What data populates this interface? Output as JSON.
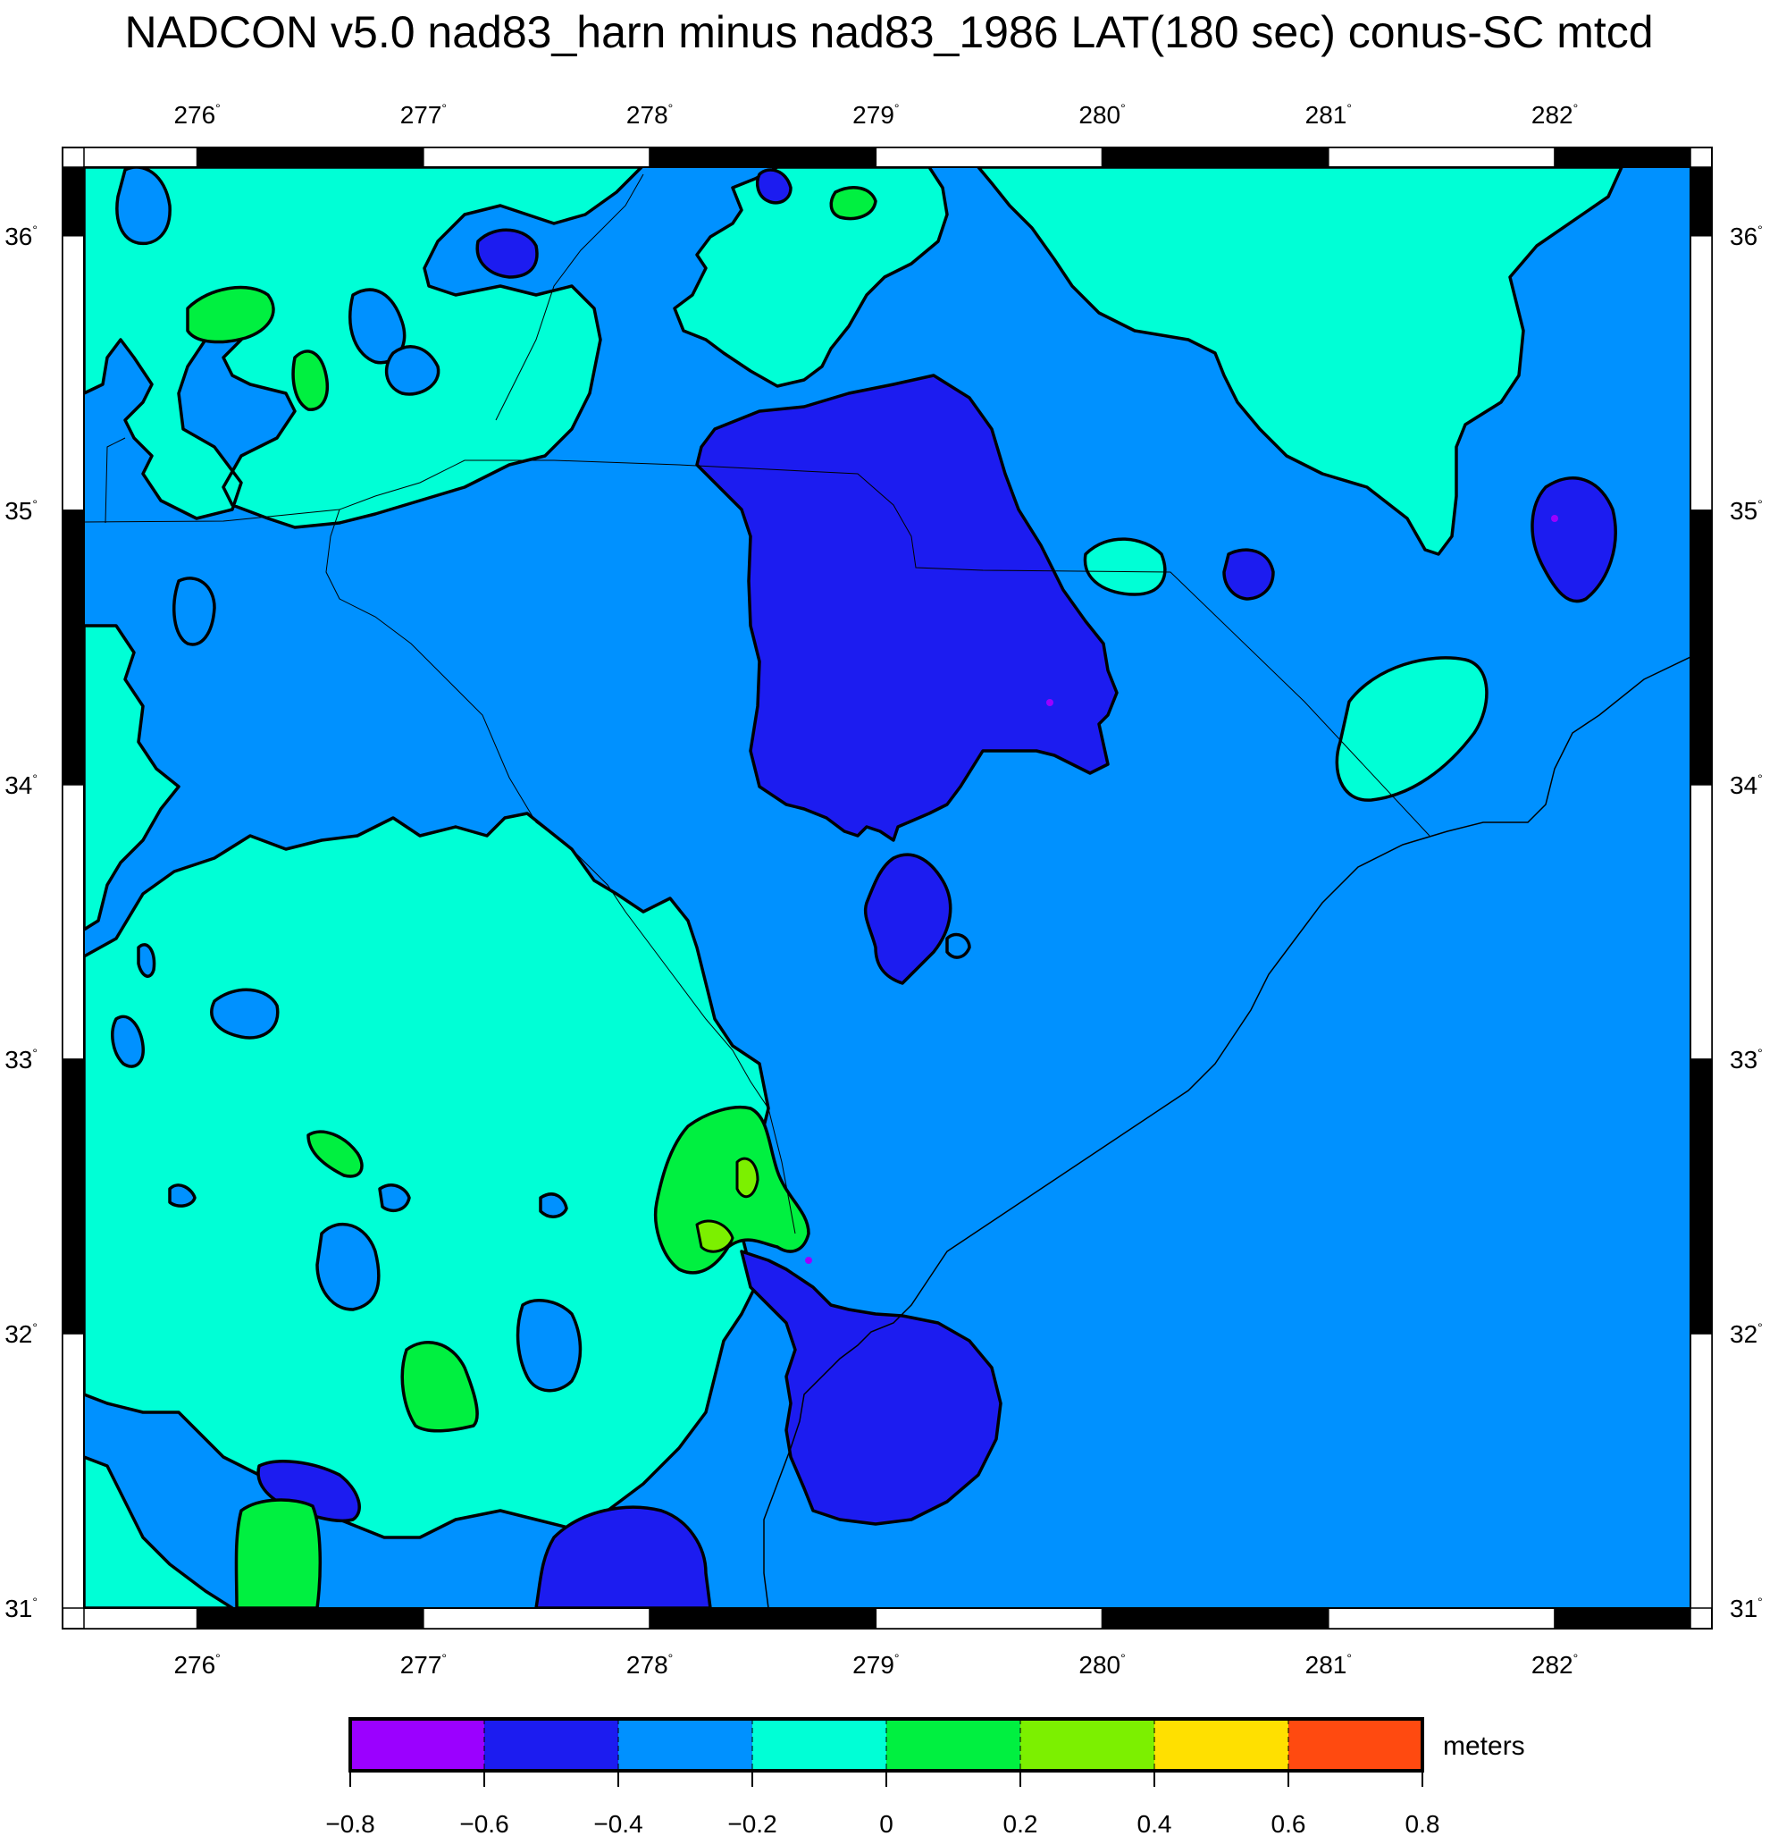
{
  "title": "NADCON v5.0 nad83_harn minus nad83_1986 LAT(180 sec) conus-SC mtcd",
  "colors": {
    "c_m08": "#9b00ff",
    "c_m06": "#1c1cf0",
    "c_m04": "#0091ff",
    "c_m02": "#00ffd6",
    "c_00": "#00f040",
    "c_02": "#7cf000",
    "c_04": "#ffe000",
    "c_06": "#ff4a10",
    "contour": "#000000",
    "frame": "#000000"
  },
  "chart_data": {
    "type": "heatmap",
    "title": "NADCON v5.0 nad83_harn minus nad83_1986 LAT(180 sec) conus-SC mtcd",
    "x_axis": {
      "range": [
        275.5,
        282.6
      ],
      "ticks": [
        276,
        277,
        278,
        279,
        280,
        281,
        282
      ],
      "tick_labels": [
        "276",
        "277",
        "278",
        "279",
        "280",
        "281",
        "282"
      ],
      "degree_symbol": "°"
    },
    "y_axis": {
      "range": [
        31.0,
        36.25
      ],
      "ticks": [
        31,
        32,
        33,
        34,
        35,
        36
      ],
      "tick_labels": [
        "31",
        "32",
        "33",
        "34",
        "35",
        "36"
      ],
      "degree_symbol": "°"
    },
    "colorbar": {
      "units": "meters",
      "boundaries": [
        -0.8,
        -0.6,
        -0.4,
        -0.2,
        0,
        0.2,
        0.4,
        0.6,
        0.8
      ],
      "tick_labels": [
        "−0.8",
        "−0.6",
        "−0.4",
        "−0.2",
        "0",
        "0.2",
        "0.4",
        "0.6",
        "0.8"
      ]
    },
    "background_class": "-0.4 to -0.2",
    "grid": false
  }
}
